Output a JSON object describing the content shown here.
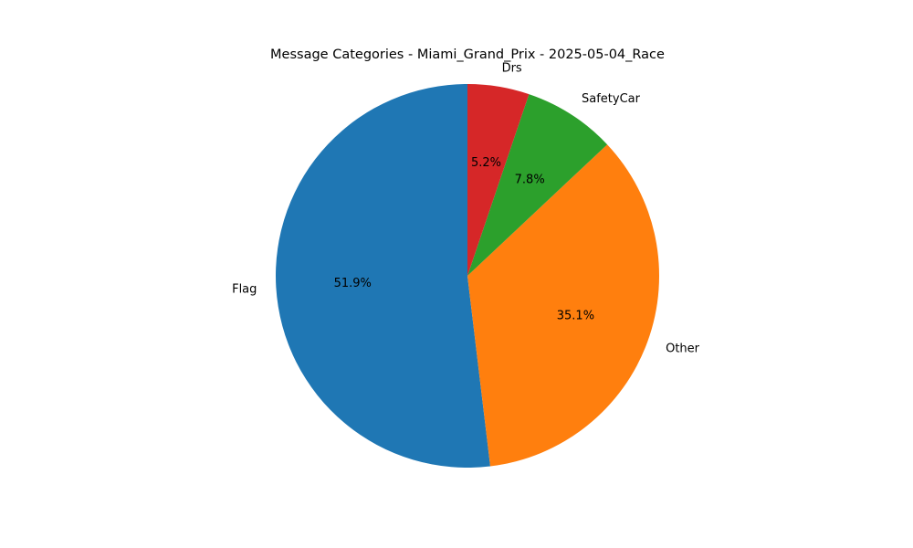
{
  "chart_data": {
    "type": "pie",
    "title": "Message Categories - Miami_Grand_Prix - 2025-05-04_Race",
    "start_angle_deg": 90,
    "direction": "counterclockwise",
    "slices": [
      {
        "label": "Flag",
        "percent_label": "51.9%",
        "value": 51.9,
        "color": "#1f77b4"
      },
      {
        "label": "Other",
        "percent_label": "35.1%",
        "value": 35.1,
        "color": "#ff7f0e"
      },
      {
        "label": "SafetyCar",
        "percent_label": "7.8%",
        "value": 7.8,
        "color": "#2ca02c"
      },
      {
        "label": "Drs",
        "percent_label": "5.2%",
        "value": 5.2,
        "color": "#d62728"
      }
    ]
  }
}
